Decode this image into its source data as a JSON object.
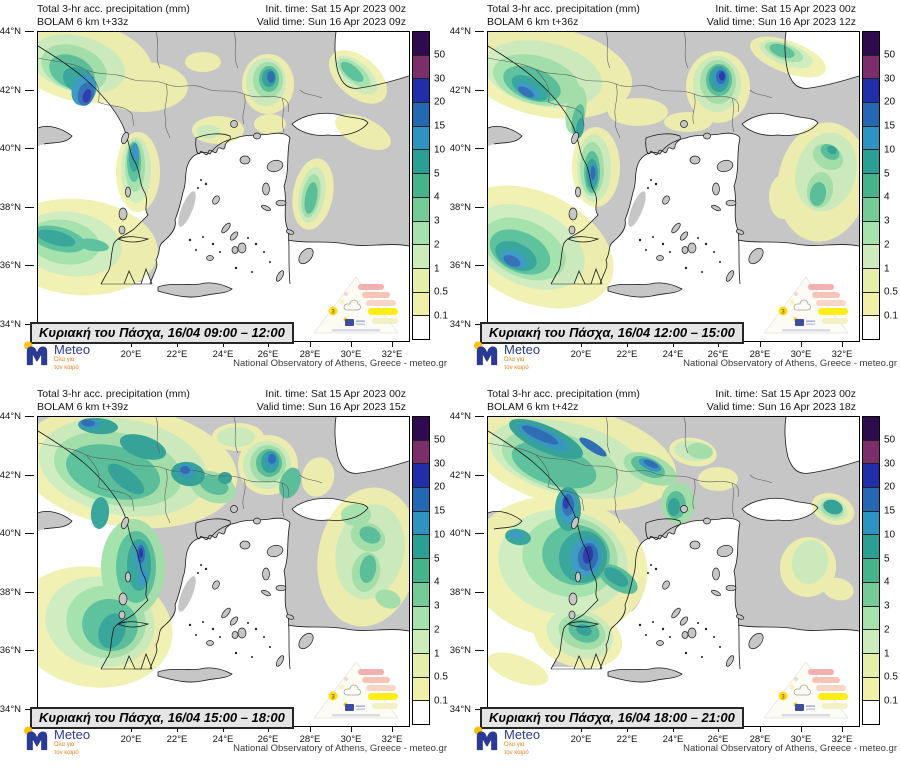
{
  "shared": {
    "title": "Total 3-hr acc. precipitation (mm)",
    "init_time": "Init. time: Sat 15 Apr 2023 00z",
    "credit": "National Observatory of Athens, Greece - meteo.gr",
    "logo": {
      "name": "Meteo",
      "tagline_line1": "Όλα για",
      "tagline_line2": "τον καιρό"
    },
    "colorbar": {
      "ticks": [
        "0.1",
        "0.5",
        "1",
        "2",
        "3",
        "4",
        "5",
        "10",
        "15",
        "20",
        "30",
        "50"
      ],
      "colors_bottom_to_top": [
        "#ffffff",
        "#f0f0a6",
        "#e6efaa",
        "#cdecbc",
        "#a5e2ac",
        "#74cb96",
        "#46b38c",
        "#2aa095",
        "#2e93c0",
        "#2467b3",
        "#202fa8",
        "#7c2e6b",
        "#2e0a4e"
      ]
    },
    "lat_labels": [
      "44°N",
      "42°N",
      "40°N",
      "38°N",
      "36°N",
      "34°N"
    ],
    "lon_labels": [
      "20°E",
      "22°E",
      "24°E",
      "26°E",
      "28°E",
      "30°E",
      "32°E"
    ],
    "pyramid_badge": "3"
  },
  "panels": [
    {
      "model": "BOLAM 6 km t+33z",
      "valid": "Valid time: Sun 16 Apr 2023 09z",
      "caption": "Κυριακή του Πάσχα, 16/04 09:00 – 12:00"
    },
    {
      "model": "BOLAM 6 km t+36z",
      "valid": "Valid time: Sun 16 Apr 2023 12z",
      "caption": "Κυριακή του Πάσχα, 16/04 12:00 – 15:00"
    },
    {
      "model": "BOLAM 6 km t+39z",
      "valid": "Valid time: Sun 16 Apr 2023 15z",
      "caption": "Κυριακή του Πάσχα, 16/04 15:00 – 18:00"
    },
    {
      "model": "BOLAM 6 km t+42z",
      "valid": "Valid time: Sun 16 Apr 2023 18z",
      "caption": "Κυριακή του Πάσχα, 16/04 18:00 – 21:00"
    }
  ]
}
